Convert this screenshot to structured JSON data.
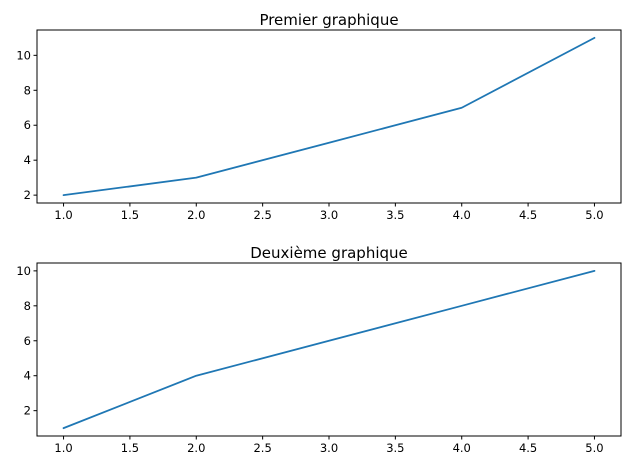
{
  "chart_data": [
    {
      "type": "line",
      "title": "Premier graphique",
      "xlabel": "",
      "ylabel": "",
      "x": [
        1,
        2,
        3,
        4,
        5
      ],
      "series": [
        {
          "values": [
            2,
            3,
            5,
            7,
            11
          ],
          "color": "#1f77b4"
        }
      ],
      "xlim": [
        0.8,
        5.2
      ],
      "ylim": [
        1.55,
        11.45
      ],
      "xticks": [
        1.0,
        1.5,
        2.0,
        2.5,
        3.0,
        3.5,
        4.0,
        4.5,
        5.0
      ],
      "xtick_labels": [
        "1.0",
        "1.5",
        "2.0",
        "2.5",
        "3.0",
        "3.5",
        "4.0",
        "4.5",
        "5.0"
      ],
      "yticks": [
        2,
        4,
        6,
        8,
        10
      ],
      "ytick_labels": [
        "2",
        "4",
        "6",
        "8",
        "10"
      ],
      "grid": false,
      "legend": "none"
    },
    {
      "type": "line",
      "title": "Deuxième graphique",
      "xlabel": "",
      "ylabel": "",
      "x": [
        1,
        2,
        3,
        4,
        5
      ],
      "series": [
        {
          "values": [
            1,
            4,
            6,
            8,
            10
          ],
          "color": "#1f77b4"
        }
      ],
      "xlim": [
        0.8,
        5.2
      ],
      "ylim": [
        0.55,
        10.45
      ],
      "xticks": [
        1.0,
        1.5,
        2.0,
        2.5,
        3.0,
        3.5,
        4.0,
        4.5,
        5.0
      ],
      "xtick_labels": [
        "1.0",
        "1.5",
        "2.0",
        "2.5",
        "3.0",
        "3.5",
        "4.0",
        "4.5",
        "5.0"
      ],
      "yticks": [
        2,
        4,
        6,
        8,
        10
      ],
      "ytick_labels": [
        "2",
        "4",
        "6",
        "8",
        "10"
      ],
      "grid": false,
      "legend": "none"
    }
  ]
}
